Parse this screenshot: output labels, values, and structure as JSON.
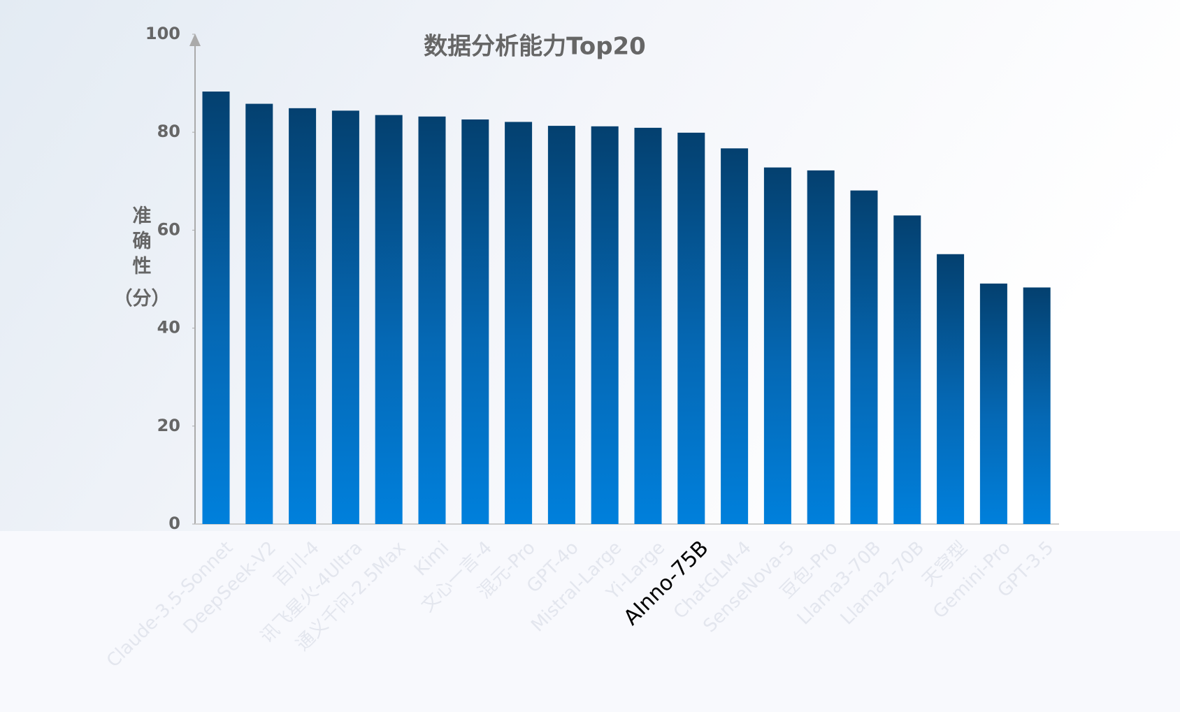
{
  "chart_data": {
    "type": "bar",
    "title": "数据分析能力Top20",
    "y_label": "准确性（分）",
    "categories": [
      "Claude-3.5-Sonnet",
      "DeepSeek-V2",
      "百川-4",
      "讯飞星火-4Ultra",
      "通义千问-2.5Max",
      "Kimi",
      "文心一言-4",
      "混元-Pro",
      "GPT-4o",
      "Mistral-Large",
      "Yi-Large",
      "AInno-75B",
      "ChatGLM-4",
      "SenseNova-5",
      "豆包-Pro",
      "Llama3-70B",
      "Llama2-70B",
      "天穹型",
      "Gemini-Pro",
      "GPT-3.5"
    ],
    "values": [
      88.3,
      85.8,
      84.9,
      84.4,
      83.5,
      83.2,
      82.6,
      82.1,
      81.3,
      81.2,
      80.9,
      79.9,
      76.7,
      72.8,
      72.2,
      68.1,
      63.0,
      55.1,
      49.1,
      48.3
    ],
    "color": "#0078d4",
    "ylim": [
      0,
      100
    ],
    "yticks": [
      0,
      20,
      40,
      60,
      80,
      100
    ],
    "grid": false
  }
}
